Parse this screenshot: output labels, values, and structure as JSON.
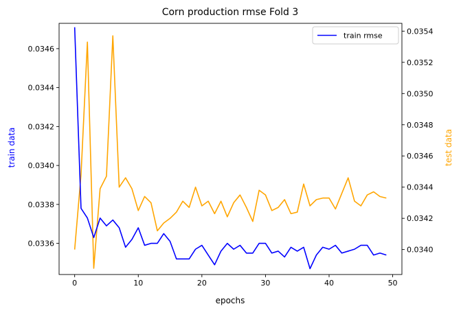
{
  "chart_data": {
    "type": "line",
    "title": "Corn production rmse Fold 3",
    "xlabel": "epochs",
    "ylabel_left": "train data",
    "ylabel_right": "test data",
    "xlim": [
      -2.45,
      51.45
    ],
    "ylim_left": [
      0.03344,
      0.03473
    ],
    "ylim_right": [
      0.03384,
      0.03545
    ],
    "x_ticks": [
      0,
      10,
      20,
      30,
      40,
      50
    ],
    "y_left_ticks": [
      "0.0336",
      "0.0338",
      "0.0340",
      "0.0342",
      "0.0344",
      "0.0346"
    ],
    "y_right_ticks": [
      "0.0340",
      "0.0342",
      "0.0344",
      "0.0346",
      "0.0348",
      "0.0350",
      "0.0352",
      "0.0354"
    ],
    "colors": {
      "train": "#0000ff",
      "test": "#ffa500",
      "left_label": "#0000ff",
      "right_label": "#ffa500"
    },
    "legend": {
      "position": "top-right",
      "entries": [
        "train rmse"
      ]
    },
    "grid": false,
    "x": [
      0,
      1,
      2,
      3,
      4,
      5,
      6,
      7,
      8,
      9,
      10,
      11,
      12,
      13,
      14,
      15,
      16,
      17,
      18,
      19,
      20,
      21,
      22,
      23,
      24,
      25,
      26,
      27,
      28,
      29,
      30,
      31,
      32,
      33,
      34,
      35,
      36,
      37,
      38,
      39,
      40,
      41,
      42,
      43,
      44,
      45,
      46,
      47,
      48,
      49
    ],
    "series": [
      {
        "name": "train rmse",
        "axis": "left",
        "values": [
          0.03471,
          0.03378,
          0.03373,
          0.03363,
          0.03373,
          0.03369,
          0.03372,
          0.03368,
          0.03358,
          0.03362,
          0.03368,
          0.03359,
          0.0336,
          0.0336,
          0.03365,
          0.03361,
          0.03352,
          0.03352,
          0.03352,
          0.03357,
          0.03359,
          0.03354,
          0.03349,
          0.03356,
          0.0336,
          0.03357,
          0.03359,
          0.03355,
          0.03355,
          0.0336,
          0.0336,
          0.03355,
          0.03356,
          0.03353,
          0.03358,
          0.03356,
          0.03358,
          0.03347,
          0.03354,
          0.03358,
          0.03357,
          0.03359,
          0.03355,
          0.03356,
          0.03357,
          0.03359,
          0.03359,
          0.03354,
          0.03355,
          0.03354
        ]
      },
      {
        "axis": "right",
        "values": [
          0.034,
          0.03448,
          0.03533,
          0.03388,
          0.03439,
          0.03447,
          0.03537,
          0.0344,
          0.03446,
          0.03439,
          0.03425,
          0.03434,
          0.0343,
          0.03412,
          0.03417,
          0.0342,
          0.03424,
          0.03431,
          0.03427,
          0.0344,
          0.03428,
          0.03431,
          0.03423,
          0.03431,
          0.03421,
          0.0343,
          0.03435,
          0.03427,
          0.03418,
          0.03438,
          0.03435,
          0.03425,
          0.03427,
          0.03432,
          0.03423,
          0.03424,
          0.03442,
          0.03428,
          0.03432,
          0.03433,
          0.03433,
          0.03426,
          0.03436,
          0.03446,
          0.03431,
          0.03428,
          0.03435,
          0.03437,
          0.03434,
          0.03433
        ]
      }
    ]
  }
}
